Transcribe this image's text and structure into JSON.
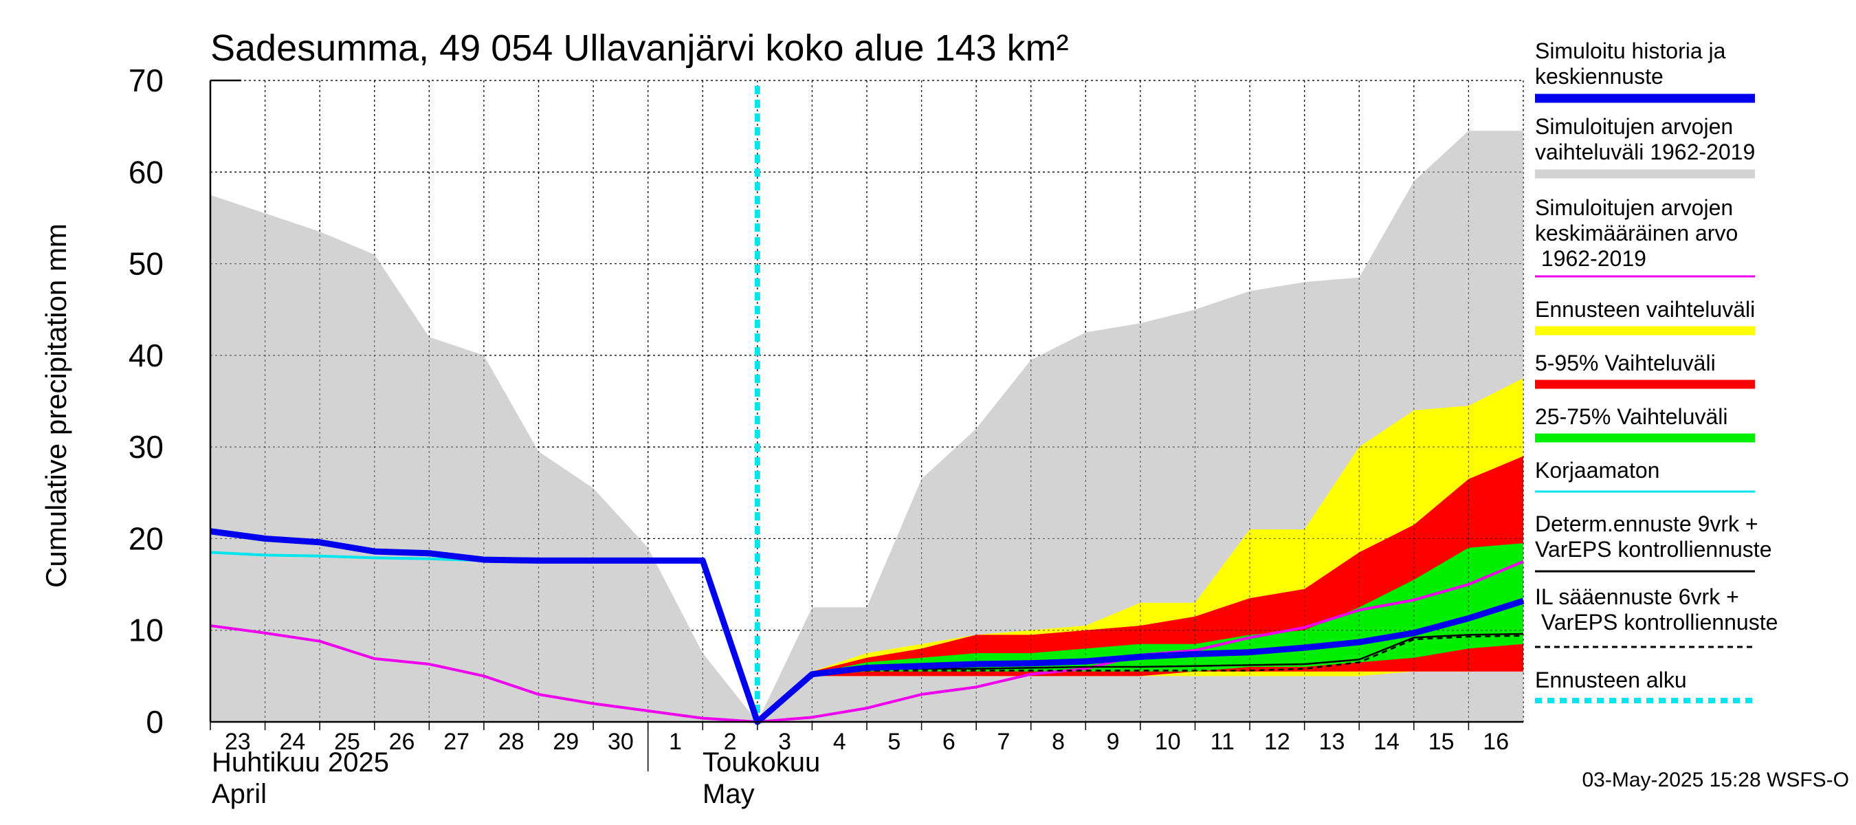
{
  "chart_data": {
    "type": "area",
    "title": "Sadesumma, 49 054 Ullavanjärvi koko alue 143 km²",
    "ylabel": "Cumulative precipitation   mm",
    "ylim": [
      0,
      70
    ],
    "yticks": [
      0,
      10,
      20,
      30,
      40,
      50,
      60,
      70
    ],
    "grid": true,
    "legend_position": "right",
    "x_days": [
      "2025-04-23",
      "2025-04-24",
      "2025-04-25",
      "2025-04-26",
      "2025-04-27",
      "2025-04-28",
      "2025-04-29",
      "2025-04-30",
      "2025-05-01",
      "2025-05-02",
      "2025-05-03",
      "2025-05-04",
      "2025-05-05",
      "2025-05-06",
      "2025-05-07",
      "2025-05-08",
      "2025-05-09",
      "2025-05-10",
      "2025-05-11",
      "2025-05-12",
      "2025-05-13",
      "2025-05-14",
      "2025-05-15",
      "2025-05-16"
    ],
    "x_tick_labels": [
      "23",
      "24",
      "25",
      "26",
      "27",
      "28",
      "29",
      "30",
      "1",
      "2",
      "3",
      "4",
      "5",
      "6",
      "7",
      "8",
      "9",
      "10",
      "11",
      "12",
      "13",
      "14",
      "15",
      "16"
    ],
    "month_labels": [
      {
        "line1": "Huhtikuu  2025",
        "line2": "April"
      },
      {
        "line1": "Toukokuu",
        "line2": "May"
      }
    ],
    "forecast_start": "2025-05-03",
    "series": [
      {
        "name": "Simuloitujen arvojen vaihteluväli 1962-2019",
        "color": "#d3d3d3",
        "kind": "band",
        "x": [
          "2025-04-23",
          "2025-04-24",
          "2025-04-25",
          "2025-04-26",
          "2025-04-27",
          "2025-04-28",
          "2025-04-29",
          "2025-04-30",
          "2025-05-01",
          "2025-05-02",
          "2025-05-03",
          "2025-05-04",
          "2025-05-05",
          "2025-05-06",
          "2025-05-07",
          "2025-05-08",
          "2025-05-09",
          "2025-05-10",
          "2025-05-11",
          "2025-05-12",
          "2025-05-13",
          "2025-05-14",
          "2025-05-15",
          "2025-05-16",
          "2025-05-17"
        ],
        "upper": [
          57.5,
          55.5,
          53.5,
          51,
          42,
          40,
          29.5,
          25.5,
          19,
          7.5,
          0,
          12.5,
          12.5,
          26.5,
          32,
          39.5,
          42.5,
          43.5,
          45,
          47,
          48,
          48.5,
          59,
          64.5,
          64.5
        ],
        "lower": [
          0,
          0,
          0,
          0,
          0,
          0,
          0,
          0,
          0,
          0,
          0,
          0,
          0,
          0,
          0,
          0,
          0,
          0,
          0,
          0,
          0,
          0,
          0,
          0,
          0
        ]
      },
      {
        "name": "Ennusteen vaihteluväli",
        "color": "#ffff00",
        "kind": "band",
        "x": [
          "2025-05-03",
          "2025-05-04",
          "2025-05-05",
          "2025-05-06",
          "2025-05-07",
          "2025-05-08",
          "2025-05-09",
          "2025-05-10",
          "2025-05-11",
          "2025-05-12",
          "2025-05-13",
          "2025-05-14",
          "2025-05-15",
          "2025-05-16",
          "2025-05-17"
        ],
        "upper": [
          0,
          5.5,
          7.5,
          8.5,
          9.5,
          10,
          10.5,
          13,
          13,
          21,
          21,
          30,
          34,
          34.5,
          37.5
        ],
        "lower": [
          0,
          5,
          5,
          5,
          5,
          5,
          5,
          5,
          5,
          5,
          5,
          5,
          5.5,
          5.5,
          6
        ]
      },
      {
        "name": "5-95% Vaihteluväli",
        "color": "#ff0000",
        "kind": "band",
        "x": [
          "2025-05-03",
          "2025-05-04",
          "2025-05-05",
          "2025-05-06",
          "2025-05-07",
          "2025-05-08",
          "2025-05-09",
          "2025-05-10",
          "2025-05-11",
          "2025-05-12",
          "2025-05-13",
          "2025-05-14",
          "2025-05-15",
          "2025-05-16",
          "2025-05-17"
        ],
        "upper": [
          0,
          5.5,
          7,
          8,
          9.5,
          9.5,
          10,
          10.5,
          11.5,
          13.5,
          14.5,
          18.5,
          21.5,
          26.5,
          29
        ],
        "lower": [
          0,
          5,
          5,
          5,
          5,
          5,
          5,
          5,
          5.5,
          5.5,
          5.5,
          5.5,
          5.5,
          5.5,
          5.5
        ]
      },
      {
        "name": "25-75% Vaihteluväli",
        "color": "#00ee00",
        "kind": "band",
        "x": [
          "2025-05-03",
          "2025-05-04",
          "2025-05-05",
          "2025-05-06",
          "2025-05-07",
          "2025-05-08",
          "2025-05-09",
          "2025-05-10",
          "2025-05-11",
          "2025-05-12",
          "2025-05-13",
          "2025-05-14",
          "2025-05-15",
          "2025-05-16",
          "2025-05-17"
        ],
        "upper": [
          0,
          5.3,
          6.5,
          7,
          7.5,
          7.5,
          8,
          8.5,
          8.5,
          9.5,
          10,
          12.5,
          15.5,
          19,
          19.5
        ],
        "lower": [
          0,
          5,
          5.5,
          5.5,
          5.5,
          5.5,
          5.5,
          5.5,
          5.5,
          6,
          6,
          6.5,
          7,
          8,
          8.5
        ]
      },
      {
        "name": "Simuloitujen arvojen keskimääräinen arvo 1962-2019",
        "color": "#ee00ee",
        "kind": "line",
        "x": [
          "2025-04-23",
          "2025-04-24",
          "2025-04-25",
          "2025-04-26",
          "2025-04-27",
          "2025-04-28",
          "2025-04-29",
          "2025-04-30",
          "2025-05-01",
          "2025-05-02",
          "2025-05-03",
          "2025-05-04",
          "2025-05-05",
          "2025-05-06",
          "2025-05-07",
          "2025-05-08",
          "2025-05-09",
          "2025-05-10",
          "2025-05-11",
          "2025-05-12",
          "2025-05-13",
          "2025-05-14",
          "2025-05-15",
          "2025-05-16",
          "2025-05-17"
        ],
        "y": [
          10.5,
          9.7,
          8.8,
          6.9,
          6.3,
          5,
          3,
          2,
          1.2,
          0.4,
          0,
          0.5,
          1.5,
          3,
          3.8,
          5.2,
          5.8,
          7.3,
          7.8,
          9.2,
          10.3,
          12.2,
          13.3,
          15,
          17.5
        ]
      },
      {
        "name": "Korjaamaton",
        "color": "#00e5ee",
        "kind": "line",
        "x": [
          "2025-04-23",
          "2025-04-24",
          "2025-04-25",
          "2025-04-26",
          "2025-04-27",
          "2025-04-28",
          "2025-04-29",
          "2025-04-30",
          "2025-05-01",
          "2025-05-02"
        ],
        "y": [
          18.5,
          18.2,
          18.1,
          17.9,
          17.8,
          17.6,
          17.5,
          17.5,
          17.5,
          17.5
        ]
      },
      {
        "name": "IL sääennuste 6vrk  + VarEPS kontrolliennuste",
        "color": "#000000",
        "kind": "line",
        "dash": true,
        "x": [
          "2025-05-03",
          "2025-05-04",
          "2025-05-05",
          "2025-05-06",
          "2025-05-07",
          "2025-05-08",
          "2025-05-09",
          "2025-05-10",
          "2025-05-11",
          "2025-05-12",
          "2025-05-13",
          "2025-05-14",
          "2025-05-15",
          "2025-05-16",
          "2025-05-17"
        ],
        "y": [
          0,
          5.2,
          5.6,
          5.6,
          5.6,
          5.6,
          5.6,
          5.6,
          5.6,
          5.6,
          5.8,
          6.5,
          9,
          9.3,
          9.4
        ]
      },
      {
        "name": "Determ.ennuste 9vrk + VarEPS kontrolliennuste",
        "color": "#000000",
        "kind": "line",
        "x": [
          "2025-05-03",
          "2025-05-04",
          "2025-05-05",
          "2025-05-06",
          "2025-05-07",
          "2025-05-08",
          "2025-05-09",
          "2025-05-10",
          "2025-05-11",
          "2025-05-12",
          "2025-05-13",
          "2025-05-14",
          "2025-05-15",
          "2025-05-16",
          "2025-05-17"
        ],
        "y": [
          0,
          5.2,
          5.8,
          5.8,
          5.8,
          5.9,
          6,
          6,
          6.1,
          6.2,
          6.3,
          6.8,
          9.2,
          9.5,
          9.6
        ]
      },
      {
        "name": "Simuloitu historia ja keskiennuste",
        "color": "#0000ee",
        "kind": "line",
        "x": [
          "2025-04-23",
          "2025-04-24",
          "2025-04-25",
          "2025-04-26",
          "2025-04-27",
          "2025-04-28",
          "2025-04-29",
          "2025-04-30",
          "2025-05-01",
          "2025-05-02",
          "2025-05-03",
          "2025-05-04",
          "2025-05-05",
          "2025-05-06",
          "2025-05-07",
          "2025-05-08",
          "2025-05-09",
          "2025-05-10",
          "2025-05-11",
          "2025-05-12",
          "2025-05-13",
          "2025-05-14",
          "2025-05-15",
          "2025-05-16",
          "2025-05-17"
        ],
        "y": [
          20.8,
          20,
          19.6,
          18.6,
          18.4,
          17.7,
          17.6,
          17.6,
          17.6,
          17.6,
          0,
          5.2,
          5.9,
          6.1,
          6.3,
          6.4,
          6.6,
          7.1,
          7.4,
          7.6,
          8.1,
          8.7,
          9.7,
          11.3,
          13.2
        ]
      }
    ],
    "legend": [
      {
        "label": "Simuloitu historia ja keskiennuste",
        "color": "#0000ee",
        "style": "thick"
      },
      {
        "label": "Simuloitujen arvojen vaihteluväli 1962-2019",
        "color": "#d3d3d3",
        "style": "thick"
      },
      {
        "label": "Simuloitujen arvojen keskimääräinen arvo 1962-2019",
        "color": "#ee00ee",
        "style": "thin"
      },
      {
        "label": "Ennusteen vaihteluväli",
        "color": "#ffff00",
        "style": "thick"
      },
      {
        "label": "5-95% Vaihteluväli",
        "color": "#ff0000",
        "style": "thick"
      },
      {
        "label": "25-75% Vaihteluväli",
        "color": "#00ee00",
        "style": "thick"
      },
      {
        "label": "Korjaamaton",
        "color": "#00e5ee",
        "style": "thin"
      },
      {
        "label": "Determ.ennuste 9vrk + VarEPS kontrolliennuste",
        "color": "#000000",
        "style": "thin"
      },
      {
        "label": "IL sääennuste 6vrk  + VarEPS kontrolliennuste",
        "color": "#000000",
        "style": "dashed"
      },
      {
        "label": "Ennusteen alku",
        "color": "#00e5ee",
        "style": "dotted"
      }
    ],
    "footer": "03-May-2025 15:28 WSFS-O"
  }
}
